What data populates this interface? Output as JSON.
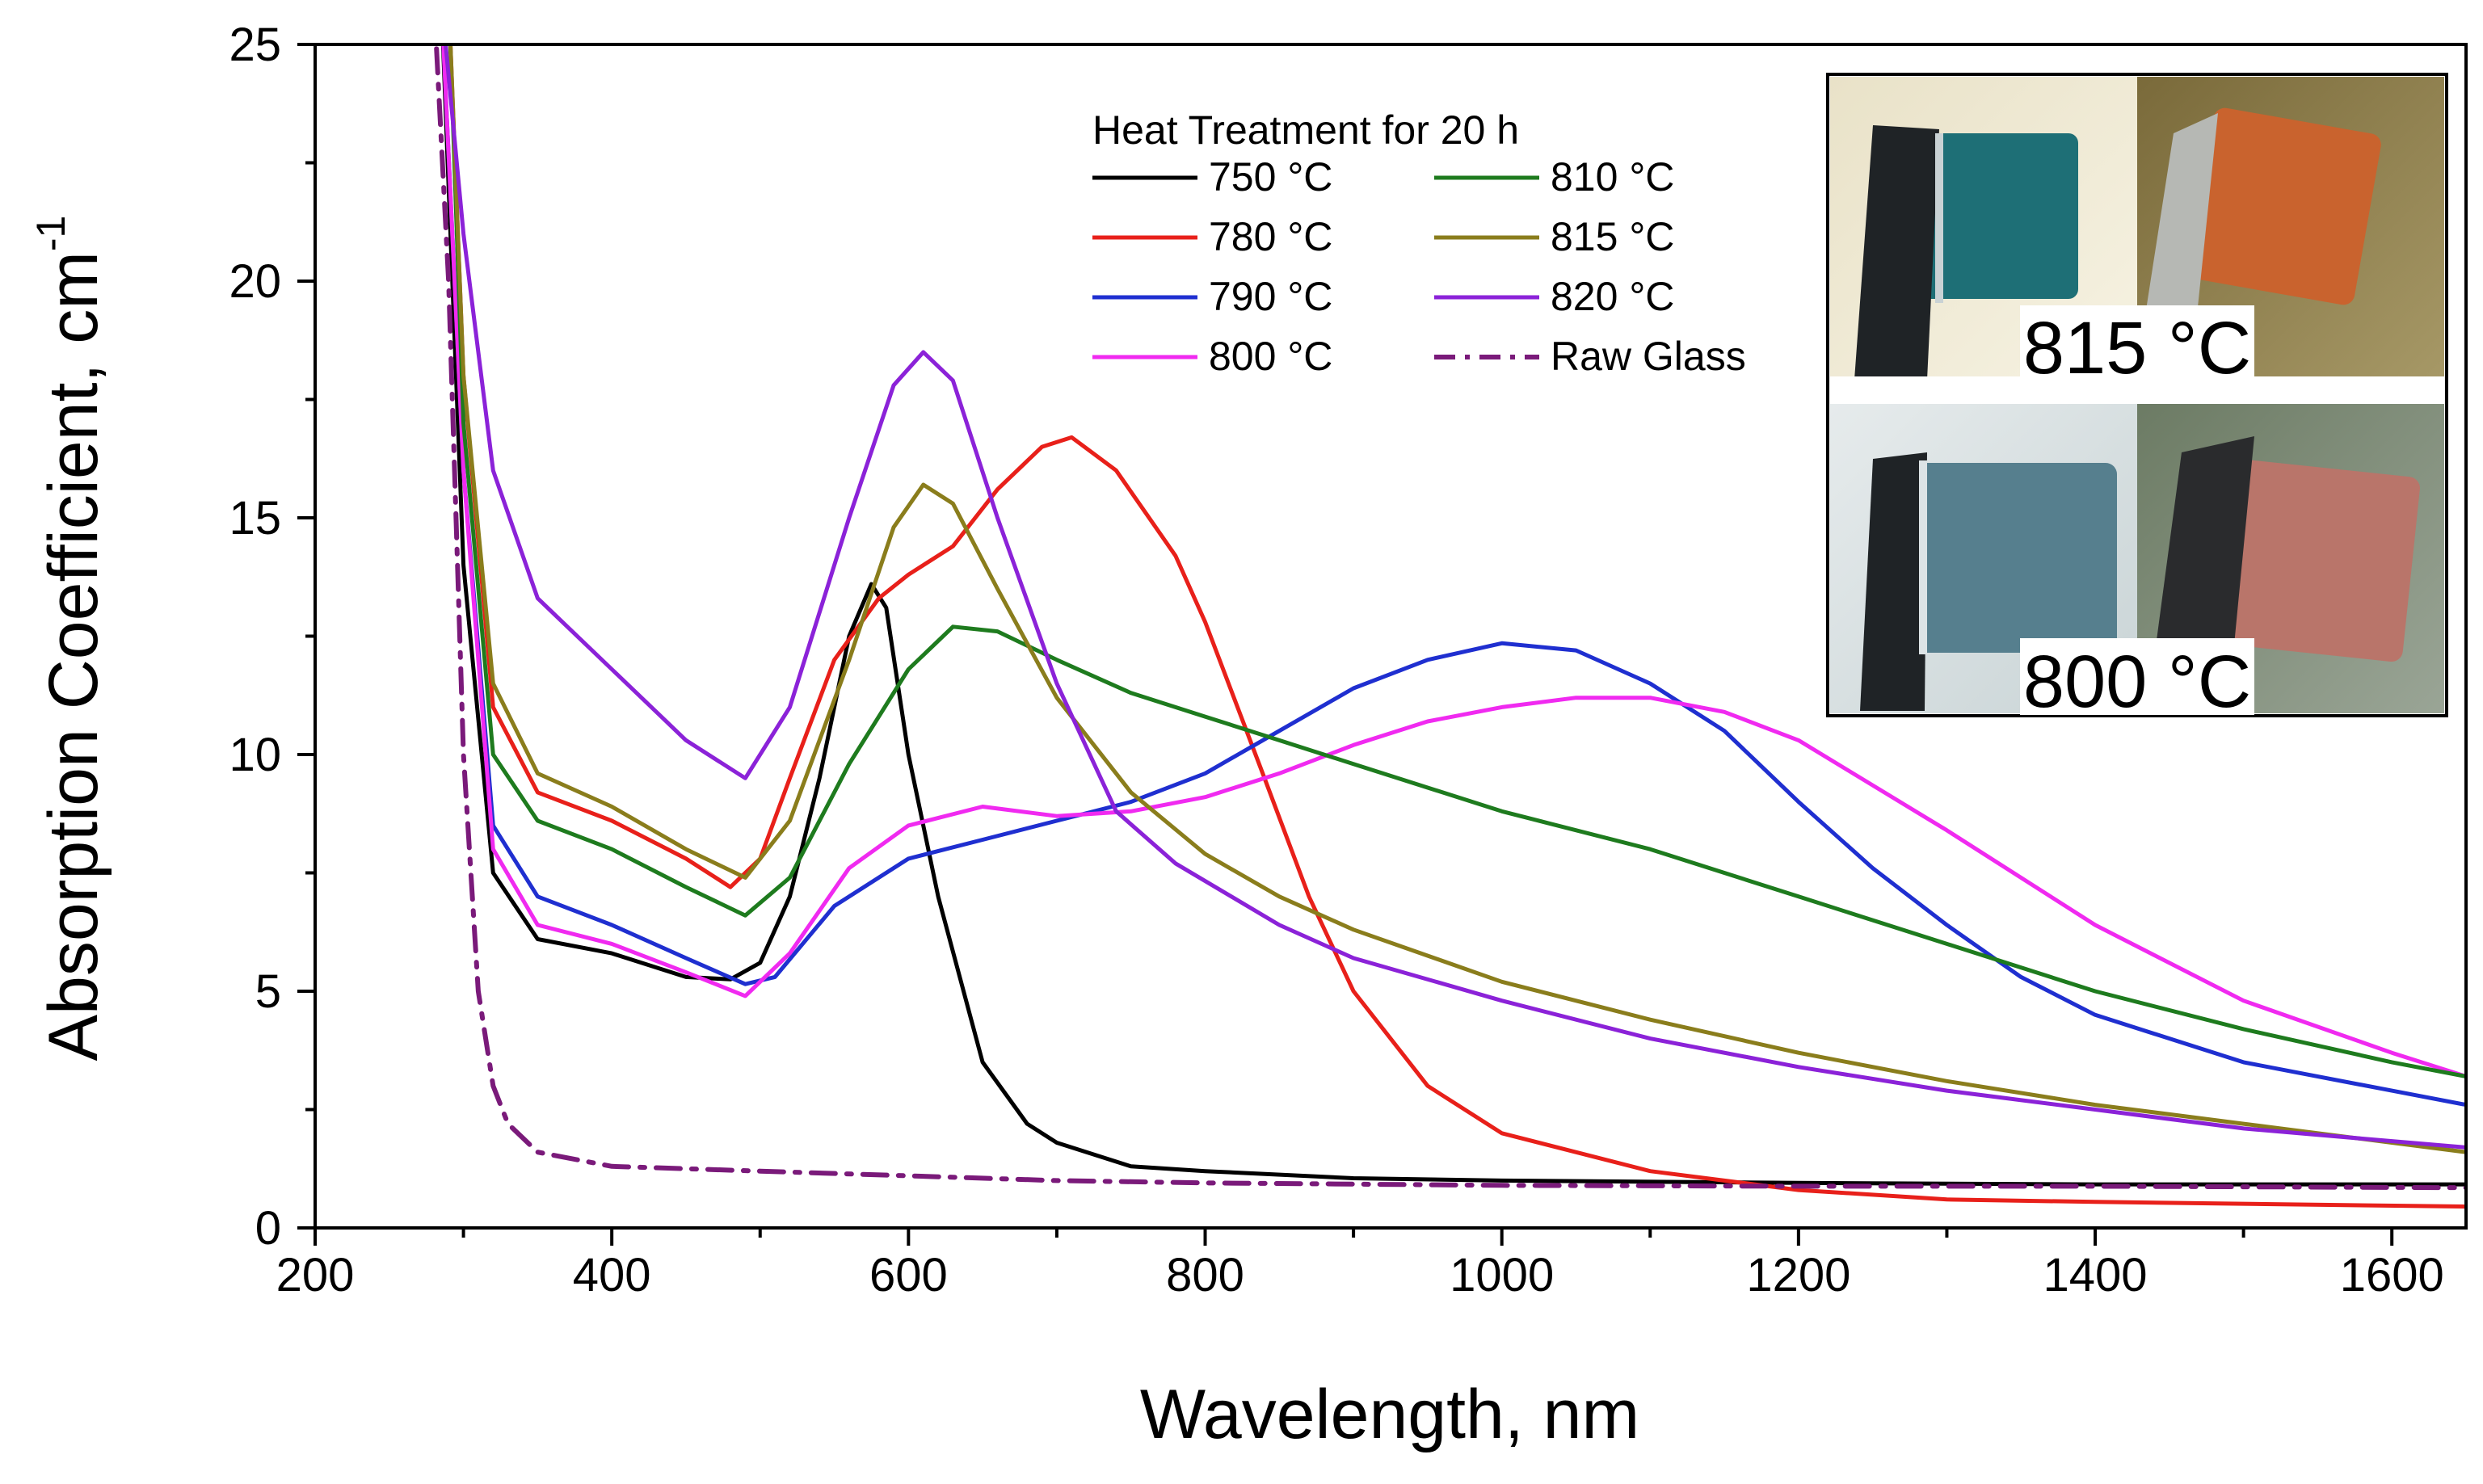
{
  "chart_data": {
    "type": "line",
    "xlabel": "Wavelength, nm",
    "ylabel": "Absorption Coefficient, cm",
    "ylabel_superscript": "-1",
    "xlim": [
      200,
      1650
    ],
    "ylim": [
      0,
      25
    ],
    "x_ticks": [
      "200",
      "400",
      "600",
      "800",
      "1000",
      "1200",
      "1400",
      "1600"
    ],
    "y_ticks": [
      "0",
      "5",
      "10",
      "15",
      "20",
      "25"
    ],
    "grid": false,
    "legend": {
      "title": "Heat Treatment for 20 h",
      "placement": "top-center",
      "columns": 2
    },
    "series": [
      {
        "name": "750 °C",
        "color": "#000000",
        "style": "solid",
        "points": [
          [
            285,
            26
          ],
          [
            300,
            14
          ],
          [
            320,
            7.5
          ],
          [
            350,
            6.1
          ],
          [
            400,
            5.8
          ],
          [
            450,
            5.3
          ],
          [
            480,
            5.25
          ],
          [
            500,
            5.6
          ],
          [
            520,
            7.0
          ],
          [
            540,
            9.5
          ],
          [
            560,
            12.5
          ],
          [
            575,
            13.6
          ],
          [
            585,
            13.1
          ],
          [
            600,
            10.0
          ],
          [
            620,
            7.0
          ],
          [
            650,
            3.5
          ],
          [
            680,
            2.2
          ],
          [
            700,
            1.8
          ],
          [
            750,
            1.3
          ],
          [
            800,
            1.2
          ],
          [
            900,
            1.05
          ],
          [
            1000,
            1.0
          ],
          [
            1200,
            0.95
          ],
          [
            1400,
            0.92
          ],
          [
            1650,
            0.92
          ]
        ]
      },
      {
        "name": "780 °C",
        "color": "#e8201a",
        "style": "solid",
        "points": [
          [
            290,
            26
          ],
          [
            300,
            18
          ],
          [
            320,
            11.0
          ],
          [
            350,
            9.2
          ],
          [
            400,
            8.6
          ],
          [
            450,
            7.8
          ],
          [
            480,
            7.2
          ],
          [
            500,
            7.8
          ],
          [
            520,
            9.5
          ],
          [
            550,
            12.0
          ],
          [
            580,
            13.3
          ],
          [
            600,
            13.8
          ],
          [
            630,
            14.4
          ],
          [
            660,
            15.6
          ],
          [
            690,
            16.5
          ],
          [
            710,
            16.7
          ],
          [
            740,
            16.0
          ],
          [
            780,
            14.2
          ],
          [
            800,
            12.8
          ],
          [
            840,
            9.5
          ],
          [
            870,
            7.0
          ],
          [
            900,
            5.0
          ],
          [
            950,
            3.0
          ],
          [
            1000,
            2.0
          ],
          [
            1100,
            1.2
          ],
          [
            1200,
            0.8
          ],
          [
            1300,
            0.6
          ],
          [
            1400,
            0.55
          ],
          [
            1650,
            0.45
          ]
        ]
      },
      {
        "name": "790 °C",
        "color": "#1f2fd0",
        "style": "solid",
        "points": [
          [
            285,
            26
          ],
          [
            300,
            16
          ],
          [
            320,
            8.5
          ],
          [
            350,
            7.0
          ],
          [
            400,
            6.4
          ],
          [
            450,
            5.7
          ],
          [
            490,
            5.15
          ],
          [
            510,
            5.3
          ],
          [
            550,
            6.8
          ],
          [
            600,
            7.8
          ],
          [
            650,
            8.2
          ],
          [
            700,
            8.6
          ],
          [
            750,
            9.0
          ],
          [
            800,
            9.6
          ],
          [
            850,
            10.5
          ],
          [
            900,
            11.4
          ],
          [
            950,
            12.0
          ],
          [
            1000,
            12.35
          ],
          [
            1050,
            12.2
          ],
          [
            1100,
            11.5
          ],
          [
            1150,
            10.5
          ],
          [
            1200,
            9.0
          ],
          [
            1250,
            7.6
          ],
          [
            1300,
            6.4
          ],
          [
            1350,
            5.3
          ],
          [
            1400,
            4.5
          ],
          [
            1500,
            3.5
          ],
          [
            1600,
            2.9
          ],
          [
            1650,
            2.6
          ]
        ]
      },
      {
        "name": "800 °C",
        "color": "#f02af0",
        "style": "solid",
        "points": [
          [
            285,
            26
          ],
          [
            300,
            16
          ],
          [
            320,
            8.0
          ],
          [
            350,
            6.4
          ],
          [
            400,
            6.0
          ],
          [
            450,
            5.4
          ],
          [
            490,
            4.9
          ],
          [
            520,
            5.8
          ],
          [
            560,
            7.6
          ],
          [
            600,
            8.5
          ],
          [
            650,
            8.9
          ],
          [
            700,
            8.7
          ],
          [
            750,
            8.8
          ],
          [
            800,
            9.1
          ],
          [
            850,
            9.6
          ],
          [
            900,
            10.2
          ],
          [
            950,
            10.7
          ],
          [
            1000,
            11.0
          ],
          [
            1050,
            11.2
          ],
          [
            1100,
            11.2
          ],
          [
            1150,
            10.9
          ],
          [
            1200,
            10.3
          ],
          [
            1300,
            8.4
          ],
          [
            1400,
            6.4
          ],
          [
            1500,
            4.8
          ],
          [
            1600,
            3.7
          ],
          [
            1650,
            3.2
          ]
        ]
      },
      {
        "name": "810 °C",
        "color": "#1e7b1e",
        "style": "solid",
        "points": [
          [
            290,
            26
          ],
          [
            300,
            17
          ],
          [
            320,
            10.0
          ],
          [
            350,
            8.6
          ],
          [
            400,
            8.0
          ],
          [
            450,
            7.2
          ],
          [
            490,
            6.6
          ],
          [
            520,
            7.4
          ],
          [
            560,
            9.8
          ],
          [
            600,
            11.8
          ],
          [
            630,
            12.7
          ],
          [
            660,
            12.6
          ],
          [
            700,
            12.0
          ],
          [
            750,
            11.3
          ],
          [
            800,
            10.8
          ],
          [
            850,
            10.3
          ],
          [
            900,
            9.8
          ],
          [
            1000,
            8.8
          ],
          [
            1100,
            8.0
          ],
          [
            1200,
            7.0
          ],
          [
            1300,
            6.0
          ],
          [
            1400,
            5.0
          ],
          [
            1500,
            4.2
          ],
          [
            1600,
            3.5
          ],
          [
            1650,
            3.2
          ]
        ]
      },
      {
        "name": "815 °C",
        "color": "#8a7d1c",
        "style": "solid",
        "points": [
          [
            290,
            26
          ],
          [
            300,
            18
          ],
          [
            320,
            11.5
          ],
          [
            350,
            9.6
          ],
          [
            400,
            8.9
          ],
          [
            450,
            8.0
          ],
          [
            490,
            7.4
          ],
          [
            520,
            8.6
          ],
          [
            560,
            12.0
          ],
          [
            590,
            14.8
          ],
          [
            610,
            15.7
          ],
          [
            630,
            15.3
          ],
          [
            660,
            13.5
          ],
          [
            700,
            11.2
          ],
          [
            750,
            9.2
          ],
          [
            800,
            7.9
          ],
          [
            850,
            7.0
          ],
          [
            900,
            6.3
          ],
          [
            1000,
            5.2
          ],
          [
            1100,
            4.4
          ],
          [
            1200,
            3.7
          ],
          [
            1300,
            3.1
          ],
          [
            1400,
            2.6
          ],
          [
            1500,
            2.2
          ],
          [
            1650,
            1.6
          ]
        ]
      },
      {
        "name": "820 °C",
        "color": "#8b22d8",
        "style": "solid",
        "points": [
          [
            285,
            26
          ],
          [
            300,
            21
          ],
          [
            320,
            16.0
          ],
          [
            350,
            13.3
          ],
          [
            400,
            11.8
          ],
          [
            450,
            10.3
          ],
          [
            490,
            9.5
          ],
          [
            520,
            11.0
          ],
          [
            560,
            15.0
          ],
          [
            590,
            17.8
          ],
          [
            610,
            18.5
          ],
          [
            630,
            17.9
          ],
          [
            660,
            15.0
          ],
          [
            700,
            11.5
          ],
          [
            740,
            8.8
          ],
          [
            780,
            7.7
          ],
          [
            850,
            6.4
          ],
          [
            900,
            5.7
          ],
          [
            1000,
            4.8
          ],
          [
            1100,
            4.0
          ],
          [
            1200,
            3.4
          ],
          [
            1300,
            2.9
          ],
          [
            1400,
            2.5
          ],
          [
            1500,
            2.1
          ],
          [
            1650,
            1.7
          ]
        ]
      },
      {
        "name": "Raw Glass",
        "color": "#7a1a7a",
        "style": "dashdot",
        "points": [
          [
            280,
            26
          ],
          [
            290,
            20
          ],
          [
            300,
            10
          ],
          [
            310,
            5
          ],
          [
            320,
            3
          ],
          [
            330,
            2.2
          ],
          [
            350,
            1.6
          ],
          [
            400,
            1.3
          ],
          [
            500,
            1.2
          ],
          [
            600,
            1.1
          ],
          [
            700,
            1.0
          ],
          [
            800,
            0.95
          ],
          [
            1000,
            0.9
          ],
          [
            1200,
            0.88
          ],
          [
            1400,
            0.88
          ],
          [
            1650,
            0.85
          ]
        ]
      }
    ],
    "inset": {
      "labels": [
        "815 °C",
        "800 °C"
      ]
    }
  }
}
